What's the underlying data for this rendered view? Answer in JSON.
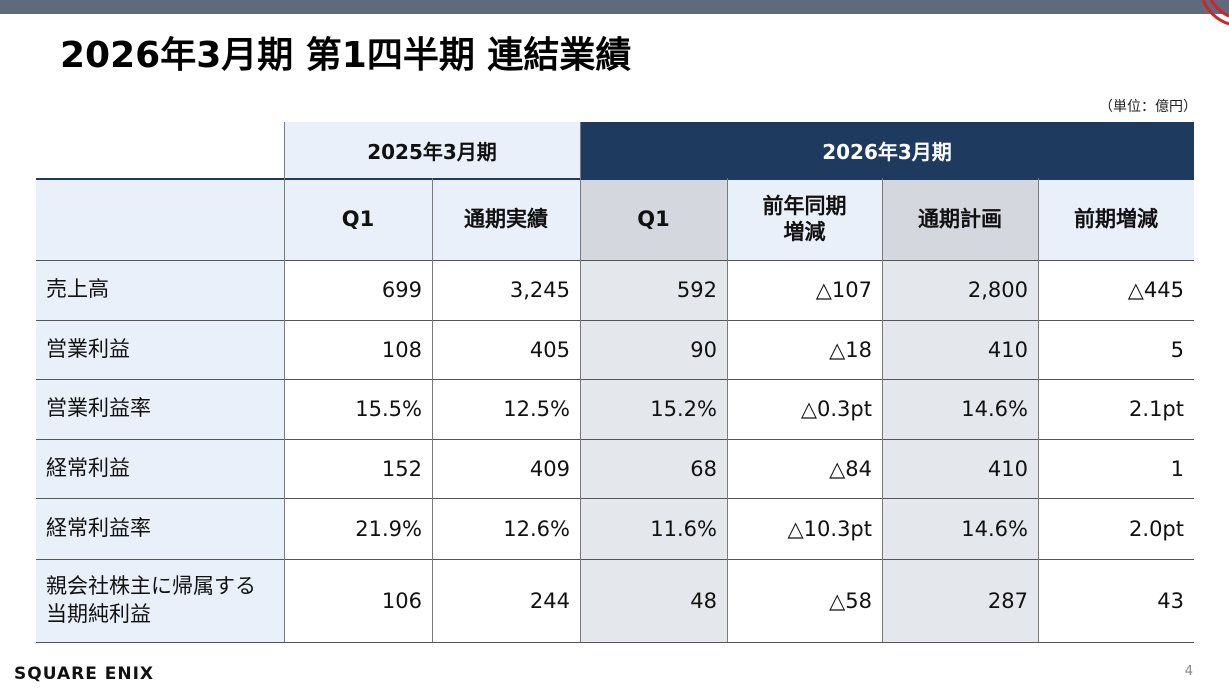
{
  "title": "2026年3月期 第1四半期 連結業績",
  "unit": "（単位：億円）",
  "groups": {
    "prev": "2025年3月期",
    "curr": "2026年3月期"
  },
  "headers": [
    "Q1",
    "通期実績",
    "Q1",
    "前年同期\n増減",
    "通期計画",
    "前期増減"
  ],
  "rows": [
    {
      "label": "売上高",
      "values": [
        "699",
        "3,245",
        "592",
        "△107",
        "2,800",
        "△445"
      ]
    },
    {
      "label": "営業利益",
      "values": [
        "108",
        "405",
        "90",
        "△18",
        "410",
        "5"
      ]
    },
    {
      "label": "営業利益率",
      "values": [
        "15.5%",
        "12.5%",
        "15.2%",
        "△0.3pt",
        "14.6%",
        "2.1pt"
      ]
    },
    {
      "label": "経常利益",
      "values": [
        "152",
        "409",
        "68",
        "△84",
        "410",
        "1"
      ]
    },
    {
      "label": "経常利益率",
      "values": [
        "21.9%",
        "12.6%",
        "11.6%",
        "△10.3pt",
        "14.6%",
        "2.0pt"
      ]
    },
    {
      "label": "親会社株主に帰属する\n当期純利益",
      "values": [
        "106",
        "244",
        "48",
        "△58",
        "287",
        "43"
      ]
    }
  ],
  "footer": {
    "logo": "SQUARE ENIX",
    "page": "4"
  },
  "colors": {
    "header_dark": "#1f3a5f",
    "header_light": "#e9f0f9",
    "shaded_column": "#e4e7eb"
  }
}
